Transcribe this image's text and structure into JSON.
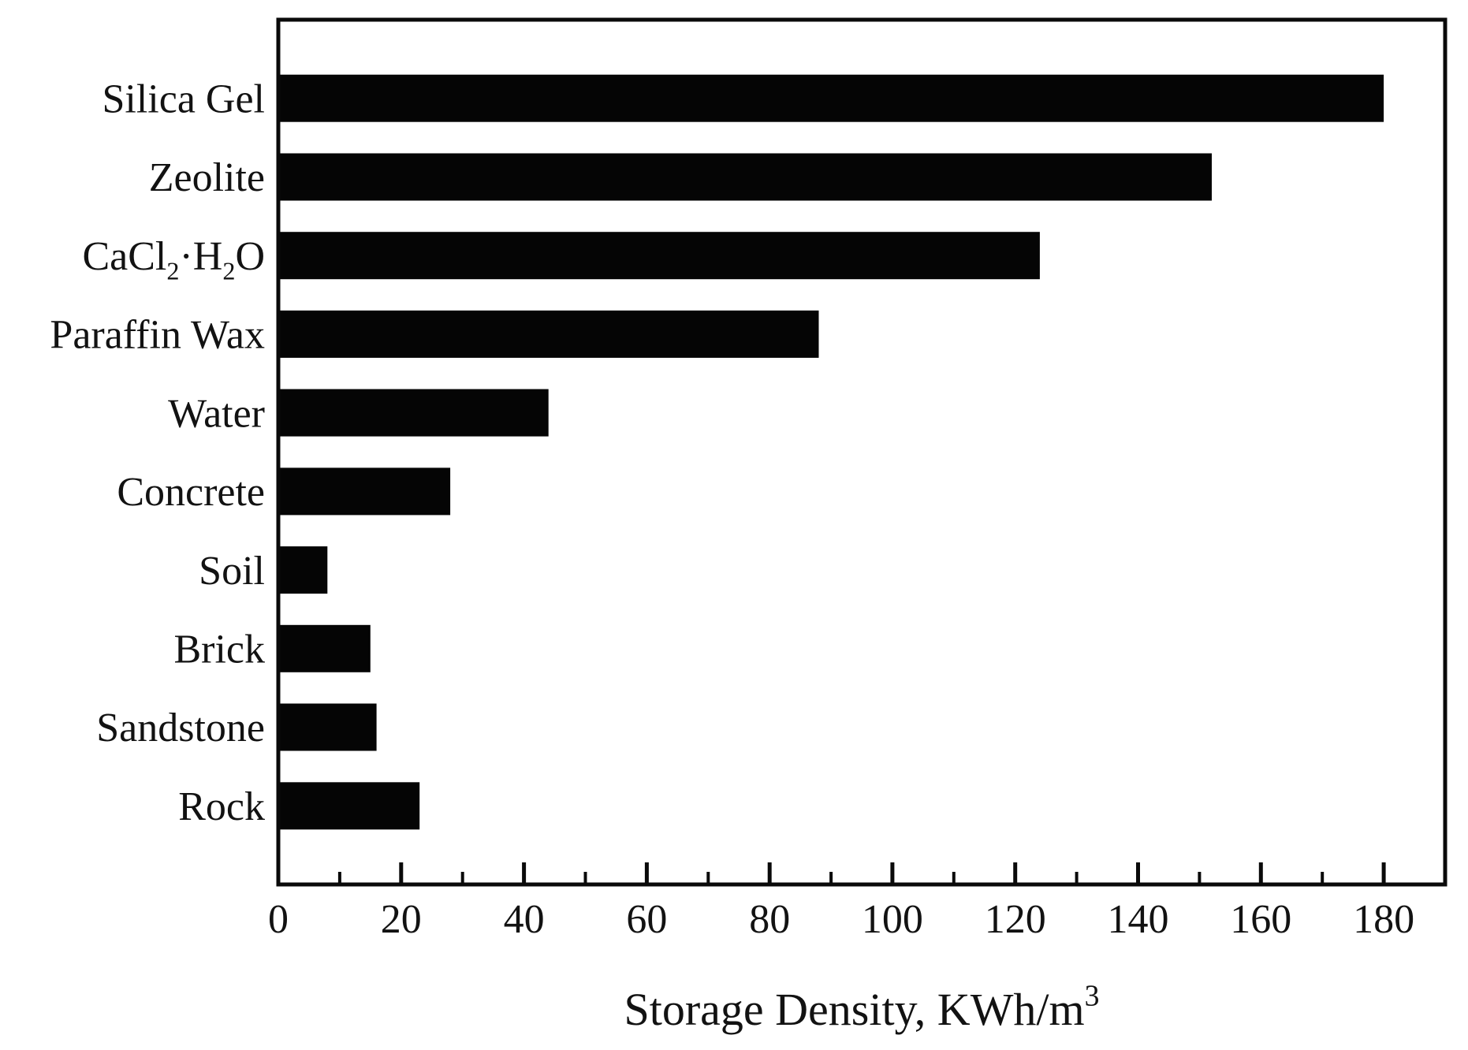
{
  "figure": {
    "background": "#ffffff",
    "bar_color": "#050505",
    "text_color": "#121212",
    "axis_color": "#0a0a0a"
  },
  "chart_data": {
    "type": "bar",
    "orientation": "horizontal",
    "title": "",
    "xlabel": "Storage Density, KWh/m³",
    "xlabel_rich": [
      "Storage Density, KWh/m",
      {
        "sup": "3"
      }
    ],
    "ylabel": "",
    "categories": [
      "Silica Gel",
      "Zeolite",
      "CaCl₂·H₂O",
      "Paraffin Wax",
      "Water",
      "Concrete",
      "Soil",
      "Brick",
      "Sandstone",
      "Rock"
    ],
    "categories_rich": [
      [
        "Silica Gel"
      ],
      [
        "Zeolite"
      ],
      [
        "CaCl",
        {
          "sub": "2"
        },
        "·H",
        {
          "sub": "2"
        },
        "O"
      ],
      [
        "Paraffin Wax"
      ],
      [
        "Water"
      ],
      [
        "Concrete"
      ],
      [
        "Soil"
      ],
      [
        "Brick"
      ],
      [
        "Sandstone"
      ],
      [
        "Rock"
      ]
    ],
    "values": [
      180,
      152,
      124,
      88,
      44,
      28,
      8,
      15,
      16,
      23
    ],
    "x_major_ticks": [
      0,
      20,
      40,
      60,
      80,
      100,
      120,
      140,
      160,
      180
    ],
    "x_major_tick_labels": [
      "0",
      "20",
      "40",
      "60",
      "80",
      "100",
      "120",
      "140",
      "160",
      "180"
    ],
    "x_minor_ticks": [
      10,
      30,
      50,
      70,
      90,
      110,
      130,
      150,
      170
    ],
    "xlim": [
      0,
      190
    ],
    "grid": false,
    "legend": false
  }
}
